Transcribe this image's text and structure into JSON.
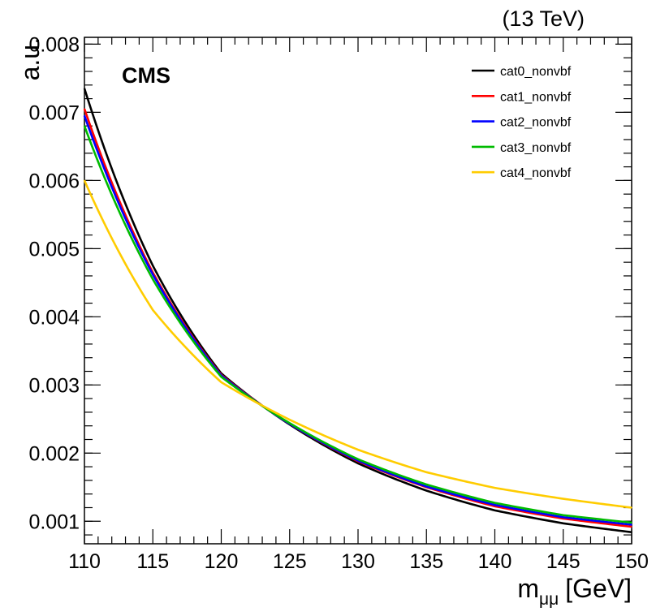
{
  "header": {
    "energy_label": "(13 TeV)",
    "experiment_label": "CMS"
  },
  "chart_data": {
    "type": "line",
    "title": "",
    "xlabel": "m",
    "xlabel_subscript": "μμ",
    "xlabel_unit": "[GeV]",
    "ylabel": "a.u.",
    "xlim": [
      110,
      150
    ],
    "ylim": [
      0.00067,
      0.0081
    ],
    "x_ticks": [
      110,
      115,
      120,
      125,
      130,
      135,
      140,
      145,
      150
    ],
    "x_tick_labels": [
      "110",
      "115",
      "120",
      "125",
      "130",
      "135",
      "140",
      "145",
      "150"
    ],
    "y_ticks": [
      0.001,
      0.002,
      0.003,
      0.004,
      0.005,
      0.006,
      0.007,
      0.008
    ],
    "y_tick_labels": [
      "0.001",
      "0.002",
      "0.003",
      "0.004",
      "0.005",
      "0.006",
      "0.007",
      "0.008"
    ],
    "grid": false,
    "legend_position": "top-right",
    "x": [
      110,
      115,
      120,
      125,
      130,
      135,
      140,
      145,
      150
    ],
    "series": [
      {
        "name": "cat0_nonvbf",
        "color": "#000000",
        "values": [
          0.00735,
          0.00475,
          0.00317,
          0.00242,
          0.00185,
          0.00145,
          0.00116,
          0.00097,
          0.00084
        ]
      },
      {
        "name": "cat1_nonvbf",
        "color": "#ff0000",
        "values": [
          0.00705,
          0.00465,
          0.00315,
          0.00243,
          0.00188,
          0.0015,
          0.00122,
          0.00104,
          0.00092
        ]
      },
      {
        "name": "cat2_nonvbf",
        "color": "#0000ff",
        "values": [
          0.00695,
          0.00462,
          0.00314,
          0.00243,
          0.00189,
          0.00151,
          0.00124,
          0.00106,
          0.00095
        ]
      },
      {
        "name": "cat3_nonvbf",
        "color": "#00bb00",
        "values": [
          0.0068,
          0.00455,
          0.00312,
          0.00244,
          0.00191,
          0.00154,
          0.00127,
          0.00109,
          0.00098
        ]
      },
      {
        "name": "cat4_nonvbf",
        "color": "#ffcc00",
        "values": [
          0.006,
          0.0041,
          0.00304,
          0.00249,
          0.00205,
          0.00172,
          0.00149,
          0.00133,
          0.0012
        ]
      }
    ]
  }
}
